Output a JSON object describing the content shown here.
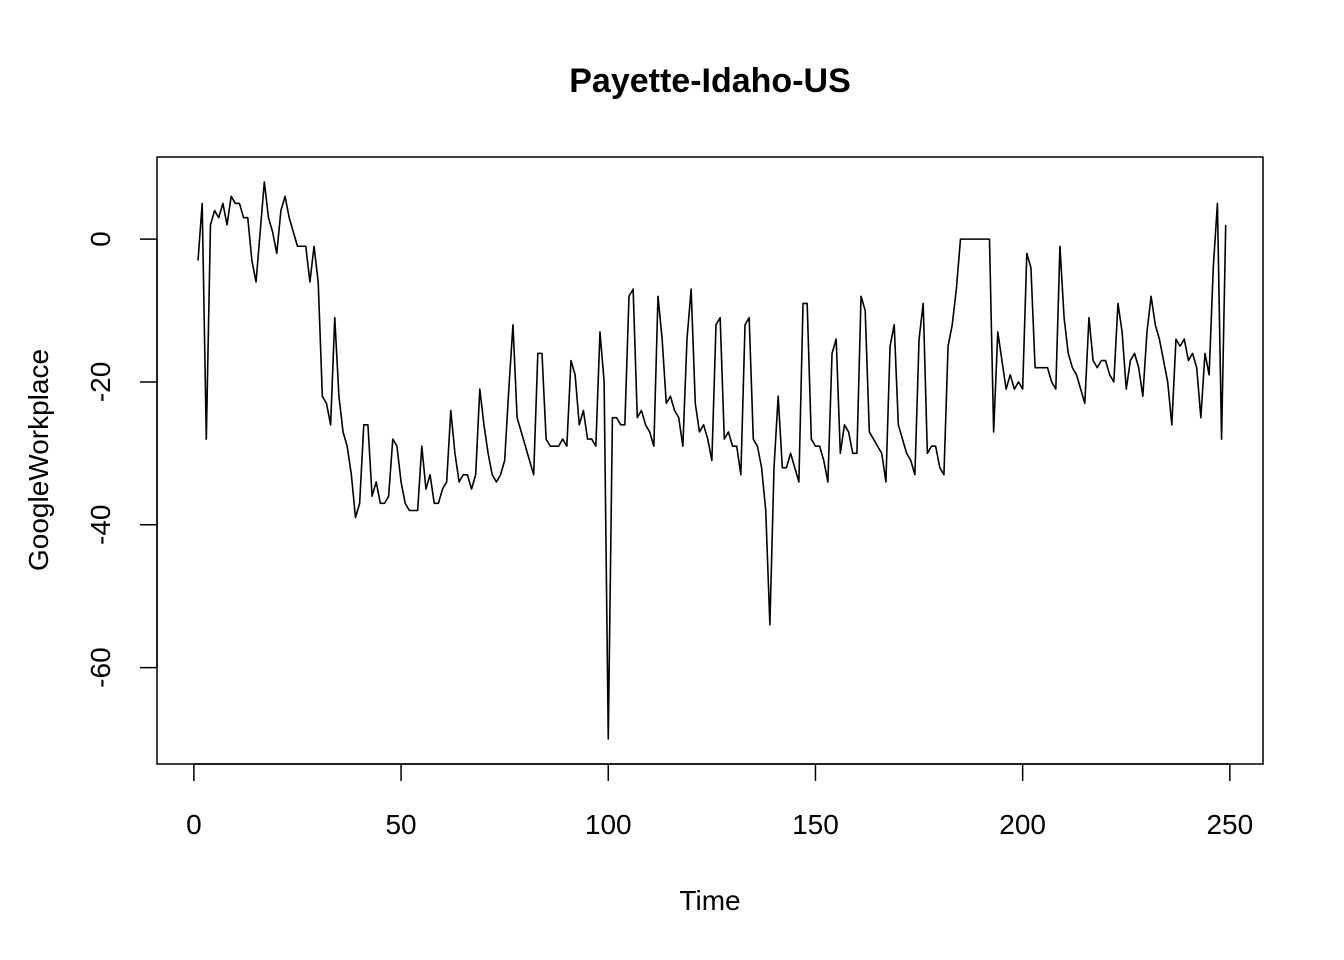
{
  "chart_data": {
    "type": "line",
    "title": "Payette-Idaho-US",
    "xlabel": "Time",
    "ylabel": "GoogleWorkplace",
    "xlim": [
      -8.9,
      258
    ],
    "ylim": [
      -73.5,
      11.5
    ],
    "xticks": [
      0,
      50,
      100,
      150,
      200,
      250
    ],
    "yticks": [
      0,
      -20,
      -40,
      -60
    ],
    "x_start": 1,
    "series": [
      {
        "values": [
          -3,
          5,
          -28,
          2,
          4,
          3,
          5,
          2,
          6,
          5,
          5,
          3,
          3,
          -3,
          -6,
          1,
          8,
          3,
          1,
          -2,
          4,
          6,
          3,
          1,
          -1,
          -1,
          -1,
          -6,
          -1,
          -6,
          -22,
          -23,
          -26,
          -11,
          -22,
          -27,
          -29,
          -33,
          -39,
          -37,
          -26,
          -26,
          -36,
          -34,
          -37,
          -37,
          -36,
          -28,
          -29,
          -34,
          -37,
          -38,
          -38,
          -38,
          -29,
          -35,
          -33,
          -37,
          -37,
          -35,
          -34,
          -24,
          -30,
          -34,
          -33,
          -33,
          -35,
          -33,
          -21,
          -26,
          -30,
          -33,
          -34,
          -33,
          -31,
          -21,
          -12,
          -25,
          -27,
          -29,
          -31,
          -33,
          -16,
          -16,
          -28,
          -29,
          -29,
          -29,
          -28,
          -29,
          -17,
          -19,
          -26,
          -24,
          -28,
          -28,
          -29,
          -13,
          -20,
          -70,
          -25,
          -25,
          -26,
          -26,
          -8,
          -7,
          -25,
          -24,
          -26,
          -27,
          -29,
          -8,
          -14,
          -23,
          -22,
          -24,
          -25,
          -29,
          -14,
          -7,
          -23,
          -27,
          -26,
          -28,
          -31,
          -12,
          -11,
          -28,
          -27,
          -29,
          -29,
          -33,
          -12,
          -11,
          -28,
          -29,
          -32,
          -38,
          -54,
          -32,
          -22,
          -32,
          -32,
          -30,
          -32,
          -34,
          -9,
          -9,
          -28,
          -29,
          -29,
          -31,
          -34,
          -16,
          -14,
          -30,
          -26,
          -27,
          -30,
          -30,
          -8,
          -10,
          -27,
          -28,
          -29,
          -30,
          -34,
          -15,
          -12,
          -26,
          -28,
          -30,
          -31,
          -33,
          -14,
          -9,
          -30,
          -29,
          -29,
          -32,
          -33,
          -15,
          -12,
          -7,
          0,
          0,
          0,
          0,
          0,
          0,
          0,
          0,
          -27,
          -13,
          -17,
          -21,
          -19,
          -21,
          -20,
          -21,
          -2,
          -4,
          -18,
          -18,
          -18,
          -18,
          -20,
          -21,
          -1,
          -11,
          -16,
          -18,
          -19,
          -21,
          -23,
          -11,
          -17,
          -18,
          -17,
          -17,
          -19,
          -20,
          -9,
          -13,
          -21,
          -17,
          -16,
          -18,
          -22,
          -13,
          -8,
          -12,
          -14,
          -17,
          -20,
          -26,
          -14,
          -15,
          -14,
          -17,
          -16,
          -18,
          -25,
          -16,
          -19,
          -4,
          5,
          -28,
          2
        ]
      }
    ]
  }
}
